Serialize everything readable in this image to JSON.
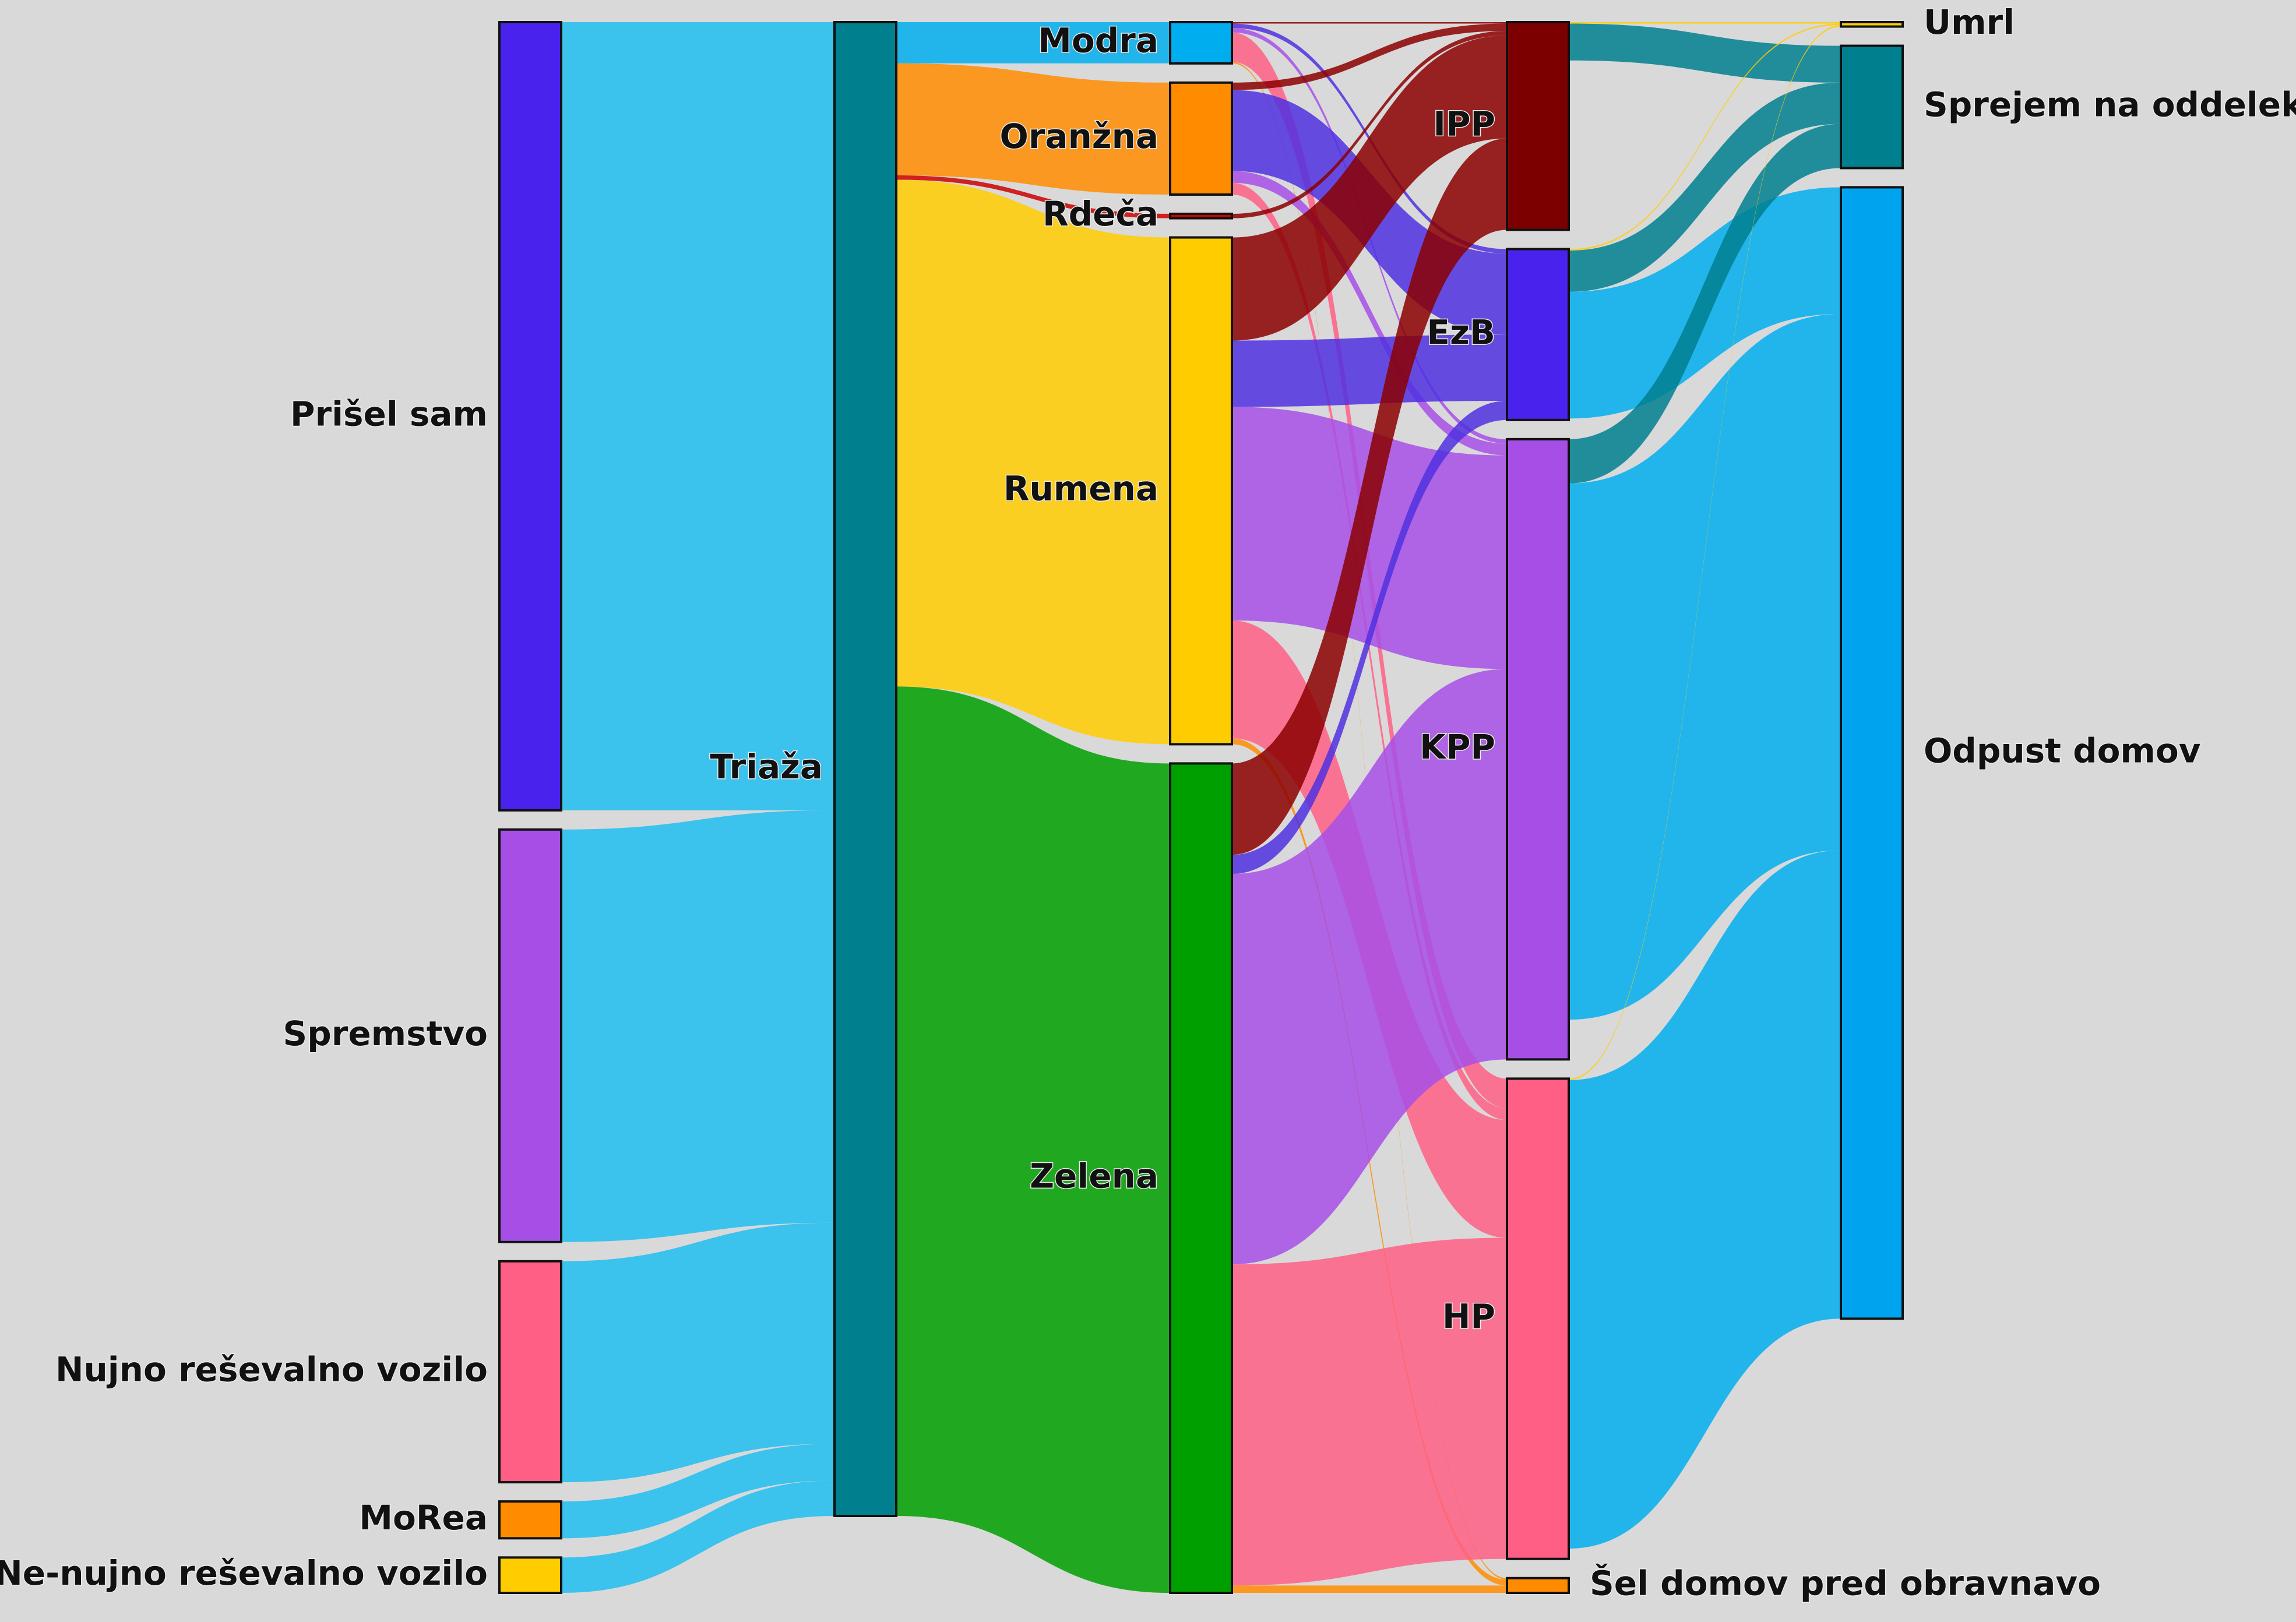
{
  "chart_data": {
    "type": "sankey",
    "nodes": [
      {
        "name": "Prišel sam",
        "color": "#4a22ee"
      },
      {
        "name": "Spremstvo",
        "color": "#a64fe6"
      },
      {
        "name": "Nujno reševalno vozilo",
        "color": "#ff5f85"
      },
      {
        "name": "MoRea",
        "color": "#ff8c00"
      },
      {
        "name": "Ne-nujno reševalno vozilo",
        "color": "#ffcc00"
      },
      {
        "name": "Triaža",
        "color": "#007f8f"
      },
      {
        "name": "Modra",
        "color": "#00aeef"
      },
      {
        "name": "Oranžna",
        "color": "#ff8c00"
      },
      {
        "name": "Rdeča",
        "color": "#cc0000"
      },
      {
        "name": "Rumena",
        "color": "#ffcc00"
      },
      {
        "name": "Zelena",
        "color": "#009f00"
      },
      {
        "name": "IPP",
        "color": "#7d0000"
      },
      {
        "name": "EzB",
        "color": "#4a22ee"
      },
      {
        "name": "KPP",
        "color": "#a64fe6"
      },
      {
        "name": "HP",
        "color": "#ff5f85"
      },
      {
        "name": "Šel domov pred obravnavo",
        "color": "#ff8c00"
      },
      {
        "name": "Umrl",
        "color": "#ffcc00"
      },
      {
        "name": "Sprejem na oddelek",
        "color": "#007f8f"
      },
      {
        "name": "Odpust domov",
        "color": "#00a4ee"
      }
    ],
    "links": [
      {
        "source": 0,
        "target": 5,
        "value": 535,
        "color": "#1ebdf0"
      },
      {
        "source": 1,
        "target": 5,
        "value": 280,
        "color": "#1ebdf0"
      },
      {
        "source": 2,
        "target": 5,
        "value": 150,
        "color": "#1ebdf0"
      },
      {
        "source": 3,
        "target": 5,
        "value": 25,
        "color": "#1ebdf0"
      },
      {
        "source": 4,
        "target": 5,
        "value": 24,
        "color": "#1ebdf0"
      },
      {
        "source": 5,
        "target": 6,
        "value": 28,
        "color": "#00aeef"
      },
      {
        "source": 5,
        "target": 7,
        "value": 76,
        "color": "#ff8c00"
      },
      {
        "source": 5,
        "target": 8,
        "value": 3,
        "color": "#cc0000"
      },
      {
        "source": 5,
        "target": 9,
        "value": 344,
        "color": "#ffcc00"
      },
      {
        "source": 5,
        "target": 10,
        "value": 563,
        "color": "#009f00"
      },
      {
        "source": 6,
        "target": 11,
        "value": 1,
        "color": "#8b0000"
      },
      {
        "source": 6,
        "target": 12,
        "value": 3,
        "color": "#5030e0"
      },
      {
        "source": 6,
        "target": 13,
        "value": 3,
        "color": "#a64fe6"
      },
      {
        "source": 6,
        "target": 14,
        "value": 20,
        "color": "#ff5f85"
      },
      {
        "source": 6,
        "target": 15,
        "value": 1,
        "color": "#ff8c00"
      },
      {
        "source": 7,
        "target": 11,
        "value": 5,
        "color": "#8b0000"
      },
      {
        "source": 7,
        "target": 12,
        "value": 55,
        "color": "#5030e0"
      },
      {
        "source": 7,
        "target": 13,
        "value": 8,
        "color": "#a64fe6"
      },
      {
        "source": 7,
        "target": 14,
        "value": 8,
        "color": "#ff5f85"
      },
      {
        "source": 8,
        "target": 11,
        "value": 3,
        "color": "#8b0000"
      },
      {
        "source": 9,
        "target": 11,
        "value": 70,
        "color": "#8b0000"
      },
      {
        "source": 9,
        "target": 12,
        "value": 45,
        "color": "#5030e0"
      },
      {
        "source": 9,
        "target": 13,
        "value": 145,
        "color": "#a64fe6"
      },
      {
        "source": 9,
        "target": 14,
        "value": 80,
        "color": "#ff5f85"
      },
      {
        "source": 9,
        "target": 15,
        "value": 4,
        "color": "#ff8c00"
      },
      {
        "source": 10,
        "target": 11,
        "value": 62,
        "color": "#8b0000"
      },
      {
        "source": 10,
        "target": 12,
        "value": 13,
        "color": "#5030e0"
      },
      {
        "source": 10,
        "target": 13,
        "value": 265,
        "color": "#a64fe6"
      },
      {
        "source": 10,
        "target": 14,
        "value": 218,
        "color": "#ff5f85"
      },
      {
        "source": 10,
        "target": 15,
        "value": 5,
        "color": "#ff8c00"
      },
      {
        "source": 11,
        "target": 16,
        "value": 1,
        "color": "#ffcc00"
      },
      {
        "source": 11,
        "target": 17,
        "value": 25,
        "color": "#007f8f"
      },
      {
        "source": 12,
        "target": 16,
        "value": 1,
        "color": "#ffcc00"
      },
      {
        "source": 12,
        "target": 17,
        "value": 28,
        "color": "#007f8f"
      },
      {
        "source": 12,
        "target": 18,
        "value": 86,
        "color": "#00aeef"
      },
      {
        "source": 13,
        "target": 17,
        "value": 30,
        "color": "#007f8f"
      },
      {
        "source": 13,
        "target": 18,
        "value": 364,
        "color": "#00aeef"
      },
      {
        "source": 14,
        "target": 16,
        "value": 1,
        "color": "#ffcc00"
      },
      {
        "source": 14,
        "target": 18,
        "value": 318,
        "color": "#00aeef"
      }
    ]
  }
}
